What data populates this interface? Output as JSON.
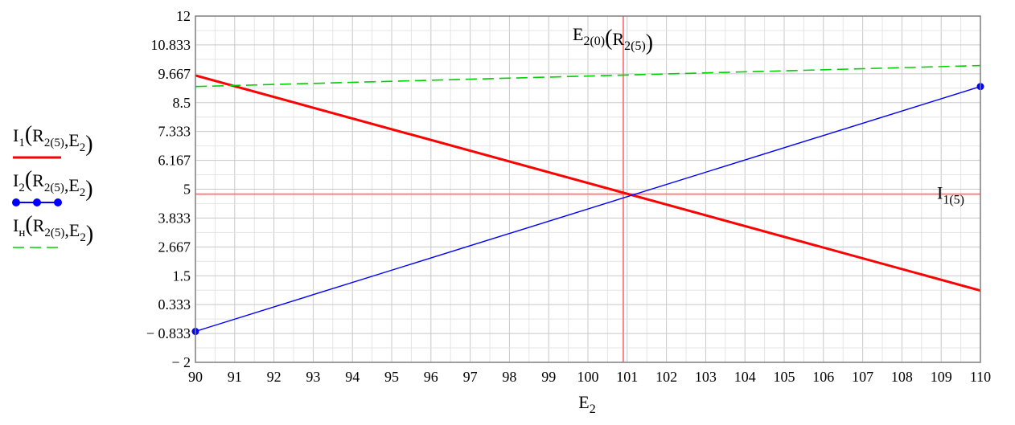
{
  "chart_data": {
    "type": "line",
    "xlabel": {
      "main": "E",
      "sub": "2"
    },
    "xlim": [
      90,
      110
    ],
    "ylim": [
      -2,
      12
    ],
    "xticks": [
      "90",
      "91",
      "92",
      "93",
      "94",
      "95",
      "96",
      "97",
      "98",
      "99",
      "100",
      "101",
      "102",
      "103",
      "104",
      "105",
      "106",
      "107",
      "108",
      "109",
      "110"
    ],
    "yticks": [
      {
        "value": -2,
        "label": "− 2"
      },
      {
        "value": -0.833,
        "label": "− 0.833"
      },
      {
        "value": 0.333,
        "label": "0.333"
      },
      {
        "value": 1.5,
        "label": "1.5"
      },
      {
        "value": 2.667,
        "label": "2.667"
      },
      {
        "value": 3.833,
        "label": "3.833"
      },
      {
        "value": 5,
        "label": "5"
      },
      {
        "value": 6.167,
        "label": "6.167"
      },
      {
        "value": 7.333,
        "label": "7.333"
      },
      {
        "value": 8.5,
        "label": "8.5"
      },
      {
        "value": 9.667,
        "label": "9.667"
      },
      {
        "value": 10.833,
        "label": "10.833"
      },
      {
        "value": 12,
        "label": "12"
      }
    ],
    "grid": true,
    "legend_position": "left",
    "series": [
      {
        "legend": {
          "base": "I",
          "sub": "1",
          "args": [
            {
              "t": "R",
              "s": "2(5)"
            },
            {
              "t": ",E",
              "s": "2"
            }
          ]
        },
        "color": "#ff0000",
        "style": "solid-thick",
        "x": [
          90,
          110
        ],
        "y": [
          9.6,
          0.9
        ]
      },
      {
        "legend": {
          "base": "I",
          "sub": "2",
          "args": [
            {
              "t": "R",
              "s": "2(5)"
            },
            {
              "t": ",E",
              "s": "2"
            }
          ]
        },
        "color": "#0000ff",
        "style": "solid-thin-dot-ends",
        "x": [
          90,
          110
        ],
        "y": [
          -0.75,
          9.15
        ]
      },
      {
        "legend": {
          "base": "I",
          "sub": "н",
          "args": [
            {
              "t": "R",
              "s": "2(5)"
            },
            {
              "t": ",E",
              "s": "2"
            }
          ]
        },
        "color": "#00d000",
        "style": "dashed",
        "x": [
          90,
          110
        ],
        "y": [
          9.15,
          10.0
        ]
      }
    ],
    "markers": {
      "vertical": {
        "x": 100.9,
        "color": "#ff8080",
        "label": {
          "parts": [
            {
              "t": "E",
              "s": "2(0)"
            },
            {
              "t": "(R",
              "s": "2(5)"
            },
            {
              "t": ")",
              "s": ""
            }
          ]
        }
      },
      "horizontal": {
        "y": 4.8,
        "color": "#ff8080",
        "label": {
          "parts": [
            {
              "t": "I",
              "s": "1(5)"
            }
          ]
        }
      }
    },
    "colors": {
      "grid": "#c8c8c8",
      "frame": "#7f7f7f"
    }
  }
}
